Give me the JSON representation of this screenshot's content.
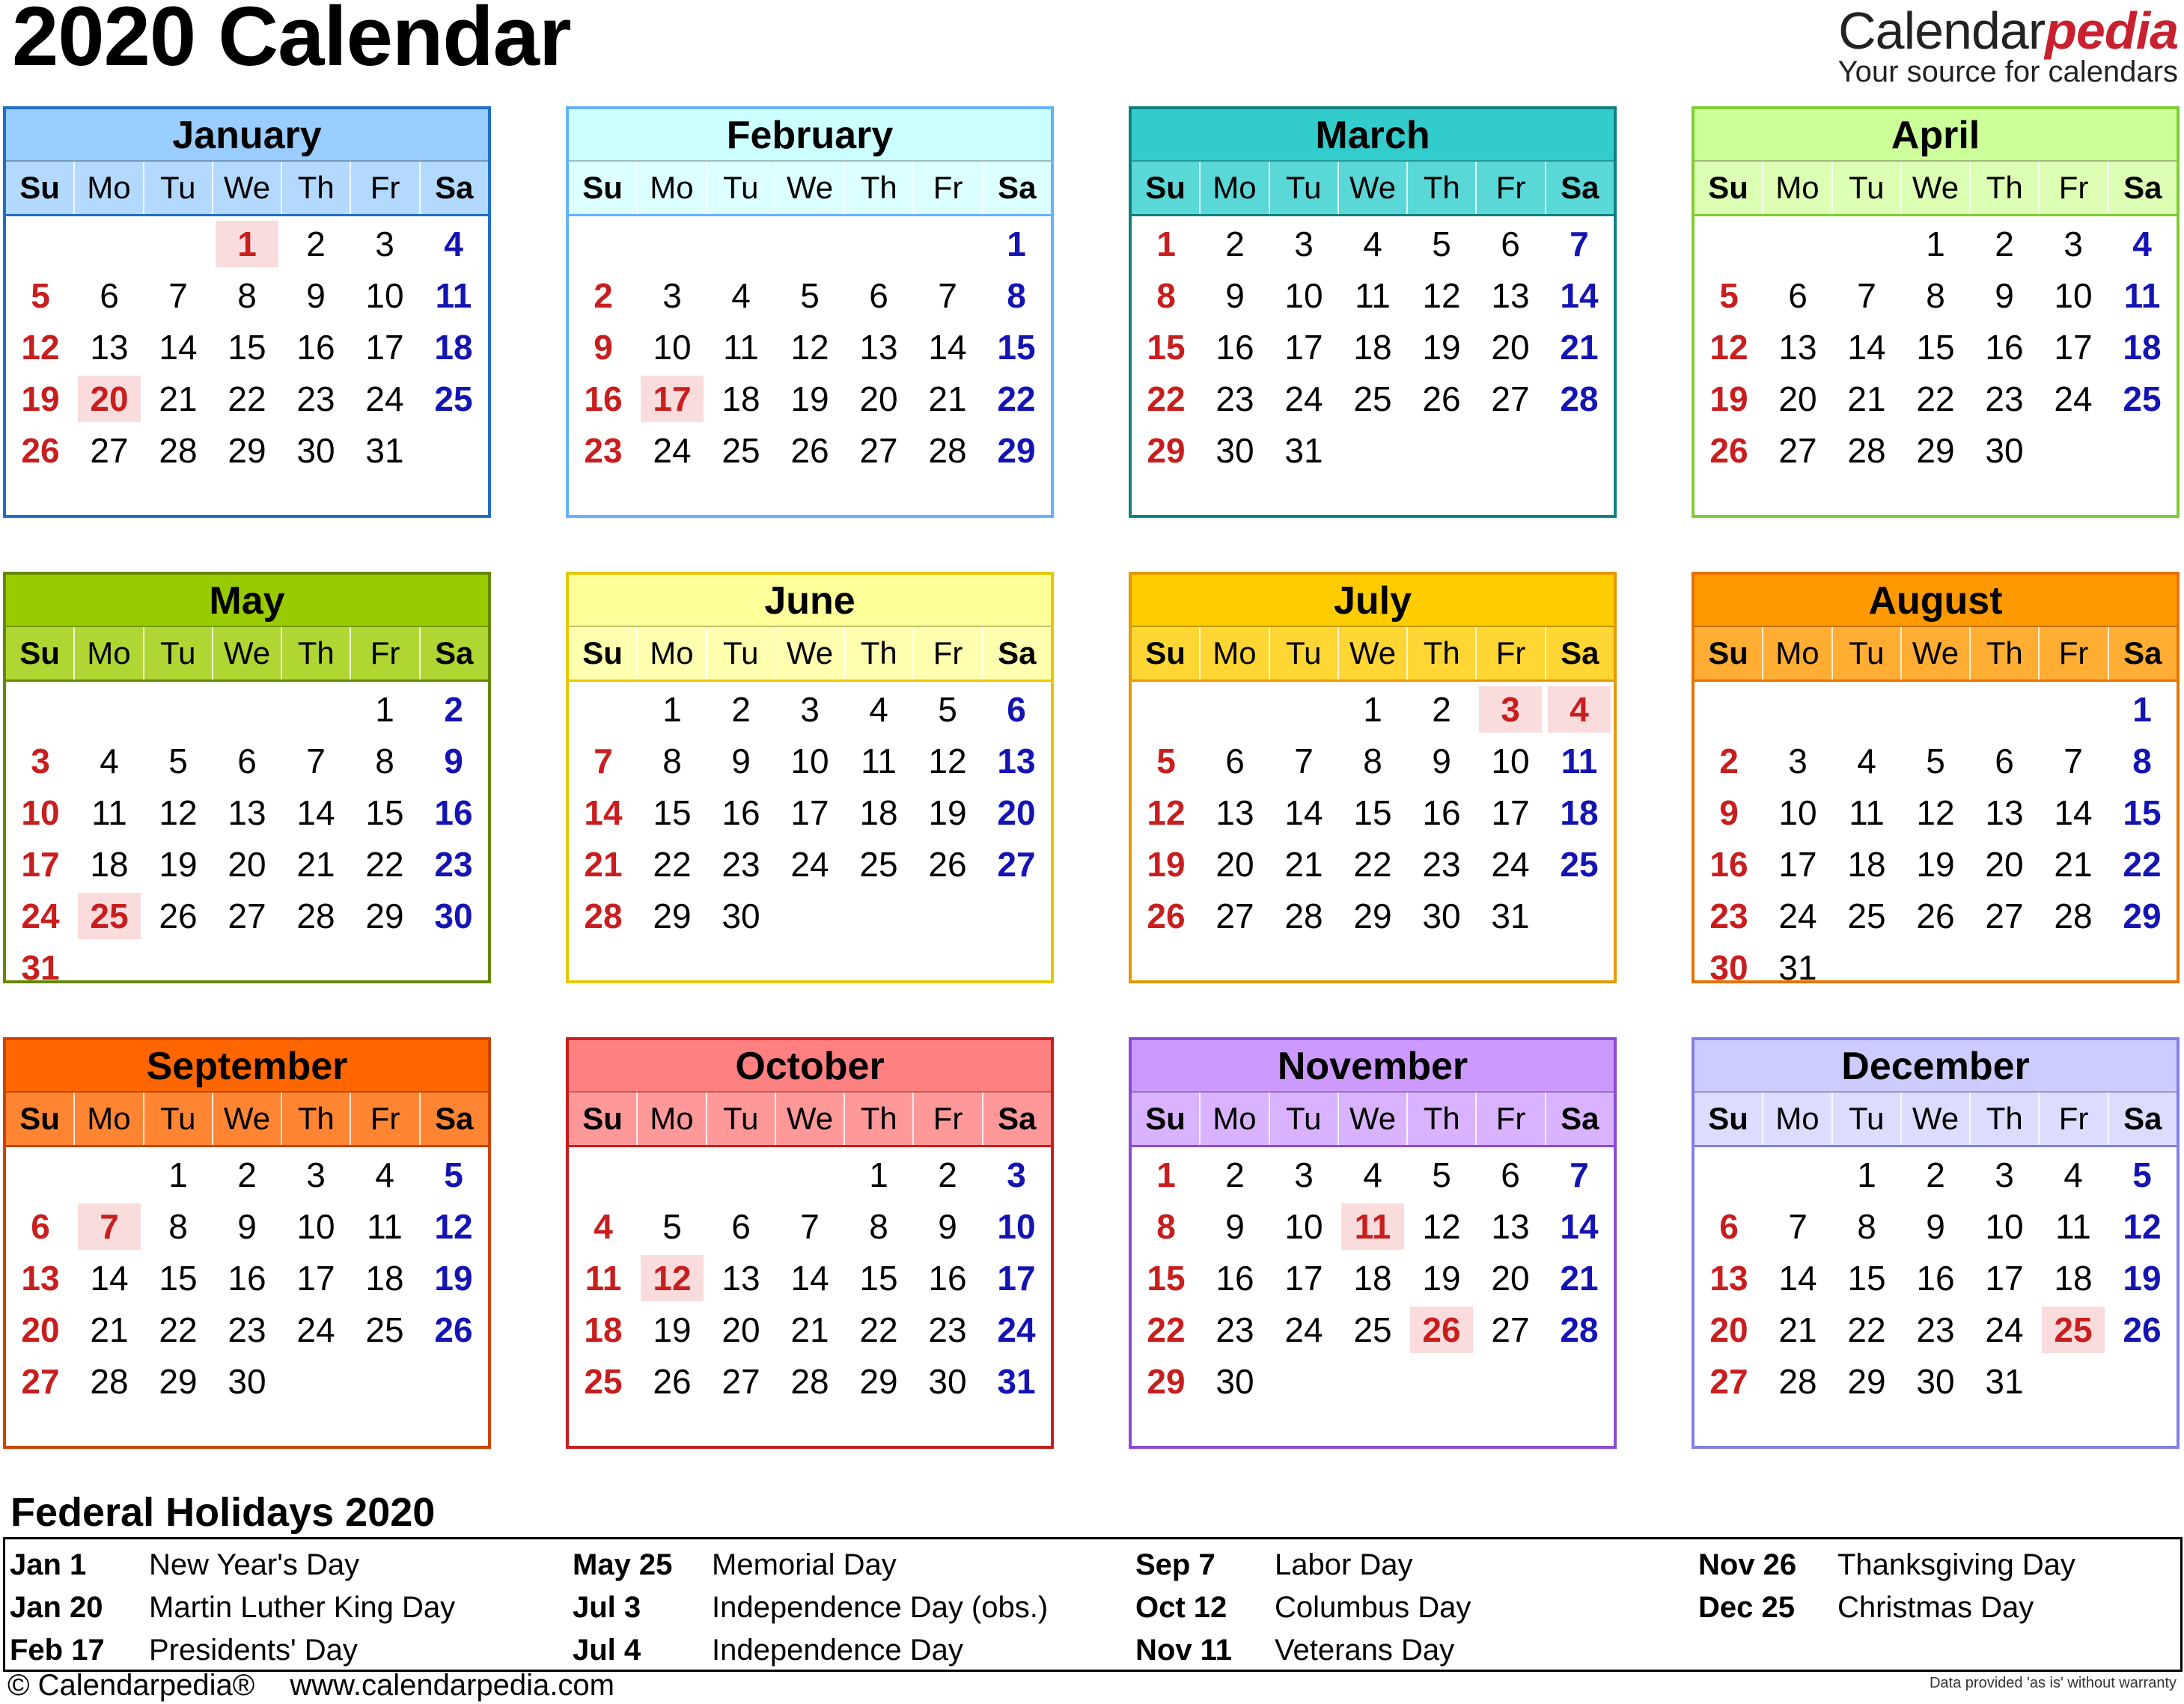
{
  "title": "2020 Calendar",
  "brand": {
    "name_main": "Calendar",
    "name_accent": "pedia",
    "tagline": "Your source for calendars"
  },
  "weekday_labels": [
    "Su",
    "Mo",
    "Tu",
    "We",
    "Th",
    "Fr",
    "Sa"
  ],
  "colors": {
    "sunday": "#c81e1e",
    "saturday": "#1414b4",
    "holiday_bg": "#fadcdc"
  },
  "months": [
    {
      "name": "January",
      "start": 3,
      "days": 31,
      "holidays": [
        1,
        20
      ],
      "header": "#99ccff",
      "dowbar": "#b3d9ff",
      "border": "#1f6ec8"
    },
    {
      "name": "February",
      "start": 6,
      "days": 29,
      "holidays": [
        17
      ],
      "header": "#ccffff",
      "dowbar": "#dcffff",
      "border": "#66b2ff"
    },
    {
      "name": "March",
      "start": 0,
      "days": 31,
      "holidays": [],
      "header": "#33cccc",
      "dowbar": "#5ad7d7",
      "border": "#0f8080"
    },
    {
      "name": "April",
      "start": 3,
      "days": 30,
      "holidays": [],
      "header": "#ccff99",
      "dowbar": "#dcffb3",
      "border": "#80cc33"
    },
    {
      "name": "May",
      "start": 5,
      "days": 31,
      "holidays": [
        25
      ],
      "header": "#99cc00",
      "dowbar": "#b0d633",
      "border": "#668800"
    },
    {
      "name": "June",
      "start": 1,
      "days": 30,
      "holidays": [],
      "header": "#ffff99",
      "dowbar": "#ffffb0",
      "border": "#e6c800"
    },
    {
      "name": "July",
      "start": 3,
      "days": 31,
      "holidays": [
        3,
        4
      ],
      "header": "#ffcc00",
      "dowbar": "#ffd633",
      "border": "#e69900"
    },
    {
      "name": "August",
      "start": 6,
      "days": 31,
      "holidays": [],
      "header": "#ff9900",
      "dowbar": "#ffad33",
      "border": "#e67300"
    },
    {
      "name": "September",
      "start": 2,
      "days": 30,
      "holidays": [
        7
      ],
      "header": "#ff6600",
      "dowbar": "#ff8533",
      "border": "#cc4400"
    },
    {
      "name": "October",
      "start": 4,
      "days": 31,
      "holidays": [
        12
      ],
      "header": "#ff8080",
      "dowbar": "#ff9999",
      "border": "#c81e1e"
    },
    {
      "name": "November",
      "start": 0,
      "days": 30,
      "holidays": [
        11,
        26
      ],
      "header": "#cc99ff",
      "dowbar": "#d9b3ff",
      "border": "#8c4bd6"
    },
    {
      "name": "December",
      "start": 2,
      "days": 31,
      "holidays": [
        25
      ],
      "header": "#ccccff",
      "dowbar": "#dcdcff",
      "border": "#8080e6"
    }
  ],
  "federal_holidays": {
    "title": "Federal Holidays 2020",
    "items": [
      {
        "date": "Jan 1",
        "name": "New Year's Day"
      },
      {
        "date": "Jan 20",
        "name": "Martin Luther King Day"
      },
      {
        "date": "Feb 17",
        "name": "Presidents' Day"
      },
      {
        "date": "May 25",
        "name": "Memorial Day"
      },
      {
        "date": "Jul 3",
        "name": "Independence Day (obs.)"
      },
      {
        "date": "Jul 4",
        "name": "Independence Day"
      },
      {
        "date": "Sep 7",
        "name": "Labor Day"
      },
      {
        "date": "Oct 12",
        "name": "Columbus Day"
      },
      {
        "date": "Nov 11",
        "name": "Veterans Day"
      },
      {
        "date": "Nov 26",
        "name": "Thanksgiving Day"
      },
      {
        "date": "Dec 25",
        "name": "Christmas Day"
      }
    ]
  },
  "footer": {
    "copyright": "© Calendarpedia®",
    "url": "www.calendarpedia.com",
    "disclaimer": "Data provided 'as is' without warranty"
  }
}
